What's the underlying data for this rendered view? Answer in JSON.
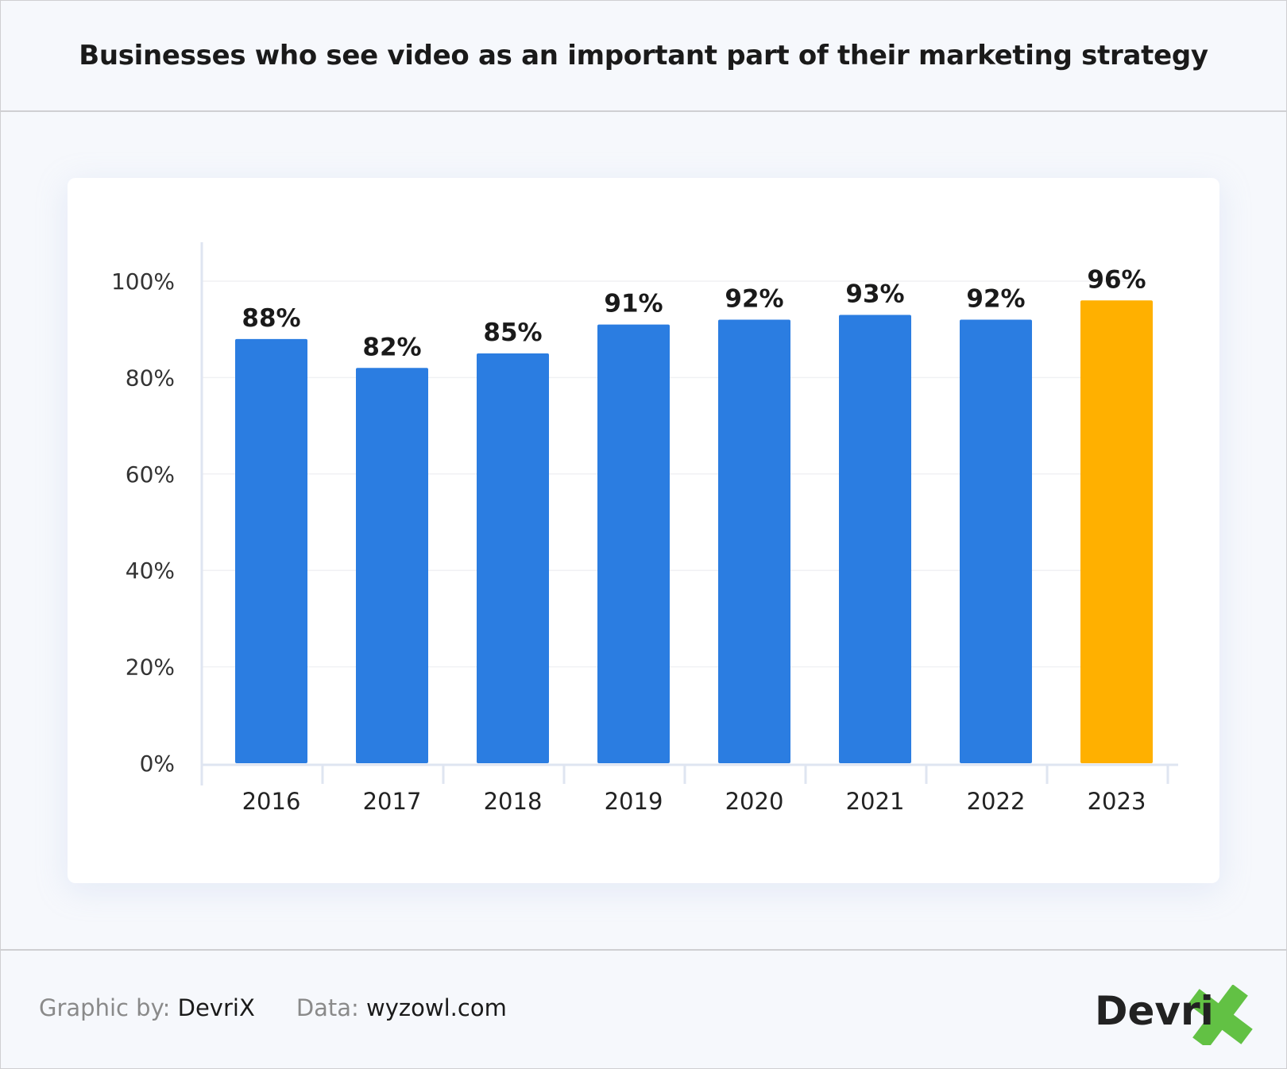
{
  "title": "Businesses who see video as an important part of their marketing strategy",
  "chart_data": {
    "type": "bar",
    "title": "Businesses who see video as an important part of their marketing strategy",
    "categories": [
      "2016",
      "2017",
      "2018",
      "2019",
      "2020",
      "2021",
      "2022",
      "2023"
    ],
    "values": [
      88,
      82,
      85,
      91,
      92,
      93,
      92,
      96
    ],
    "data_labels": [
      "88%",
      "82%",
      "85%",
      "91%",
      "92%",
      "93%",
      "92%",
      "96%"
    ],
    "ylim": [
      0,
      100
    ],
    "yticks": [
      0,
      20,
      40,
      60,
      80,
      100
    ],
    "ytick_labels": [
      "0%",
      "20%",
      "40%",
      "60%",
      "80%",
      "100%"
    ],
    "grid": true,
    "colors": {
      "default": "#2b7de1",
      "highlight": "#ffb000"
    },
    "highlight_index": 7
  },
  "footer": {
    "graphic_label": "Graphic by:",
    "graphic_value": "DevriX",
    "data_label": "Data:",
    "data_value": "wyzowl.com"
  },
  "logo": {
    "text": "Devri",
    "mark": "X",
    "mark_color": "#62c144"
  }
}
